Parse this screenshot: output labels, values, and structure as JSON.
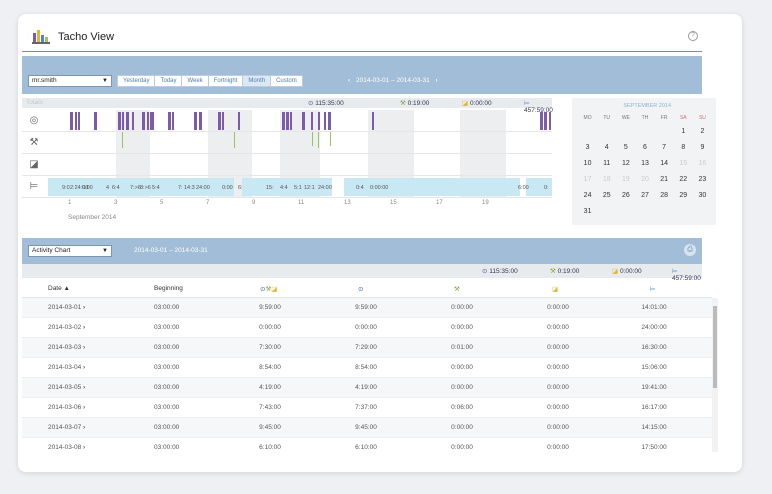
{
  "app": {
    "title": "Tacho View"
  },
  "top": {
    "driver": "mr.smith",
    "tabs": [
      "Yesterday",
      "Today",
      "Week",
      "Fortnight",
      "Month",
      "Custom"
    ],
    "active_tab": "Month",
    "range_from": "2014-03-01",
    "range_sep": "–",
    "range_to": "2014-03-31",
    "summary_left": "Totals",
    "totals": {
      "drive": "115:35:00",
      "work": "0:19:00",
      "available": "0:00:00",
      "rest": "457:59:00"
    },
    "day_numbers": [
      "1",
      "3",
      "5",
      "7",
      "9",
      "11",
      "13",
      "15",
      "17",
      "19"
    ],
    "month_label": "September 2014",
    "rest_labels": [
      "9:0",
      "2:24:00",
      "0:00",
      "4",
      "6:4",
      "7:>6",
      "8:>6",
      "5:4",
      "7:",
      "14:3",
      "24:00",
      "0:00",
      "6:",
      "15:",
      "4:4",
      "5:1",
      "12:1",
      "24:00",
      "0:4",
      "0:00:00",
      "6:00",
      "0:"
    ]
  },
  "calendar": {
    "title": "SEPTEMBER 2014",
    "dow": [
      "MO",
      "TU",
      "WE",
      "TH",
      "FR",
      "SA",
      "SU"
    ],
    "weeks": [
      [
        "",
        "",
        "",
        "",
        "",
        "1",
        "2"
      ],
      [
        "3",
        "4",
        "5",
        "6",
        "7",
        "8",
        "9"
      ],
      [
        "10",
        "11",
        "12",
        "13",
        "14",
        "15",
        "16"
      ],
      [
        "17",
        "18",
        "19",
        "20",
        "21",
        "22",
        "23"
      ],
      [
        "24",
        "25",
        "26",
        "27",
        "28",
        "29",
        "30"
      ],
      [
        "31",
        "",
        "",
        "",
        "",
        "",
        ""
      ]
    ],
    "dim_days": [
      "15",
      "16",
      "17",
      "18",
      "19",
      "20"
    ]
  },
  "activity": {
    "chart_select": "Activity Chart",
    "range_from": "2014-03-01",
    "range_sep": "–",
    "range_to": "2014-03-31",
    "totals": {
      "drive": "115:35:00",
      "work": "0:19:00",
      "available": "0:00:00",
      "rest": "457:59:00"
    },
    "columns": {
      "date": "Date",
      "beginning": "Beginning"
    },
    "rows": [
      {
        "date": "2014-03-01",
        "beginning": "03:00:00",
        "total": "9:59:00",
        "drive": "9:59:00",
        "work": "0:00:00",
        "available": "0:00:00",
        "rest": "14:01:00"
      },
      {
        "date": "2014-03-02",
        "beginning": "03:00:00",
        "total": "0:00:00",
        "drive": "0:00:00",
        "work": "0:00:00",
        "available": "0:00:00",
        "rest": "24:00:00"
      },
      {
        "date": "2014-03-03",
        "beginning": "03:00:00",
        "total": "7:30:00",
        "drive": "7:29:00",
        "work": "0:01:00",
        "available": "0:00:00",
        "rest": "16:30:00"
      },
      {
        "date": "2014-03-04",
        "beginning": "03:00:00",
        "total": "8:54:00",
        "drive": "8:54:00",
        "work": "0:00:00",
        "available": "0:00:00",
        "rest": "15:06:00"
      },
      {
        "date": "2014-03-05",
        "beginning": "03:00:00",
        "total": "4:19:00",
        "drive": "4:19:00",
        "work": "0:00:00",
        "available": "0:00:00",
        "rest": "19:41:00"
      },
      {
        "date": "2014-03-06",
        "beginning": "03:00:00",
        "total": "7:43:00",
        "drive": "7:37:00",
        "work": "0:06:00",
        "available": "0:00:00",
        "rest": "16:17:00"
      },
      {
        "date": "2014-03-07",
        "beginning": "03:00:00",
        "total": "9:45:00",
        "drive": "9:45:00",
        "work": "0:00:00",
        "available": "0:00:00",
        "rest": "14:15:00"
      },
      {
        "date": "2014-03-08",
        "beginning": "03:00:00",
        "total": "6:10:00",
        "drive": "6:10:00",
        "work": "0:00:00",
        "available": "0:00:00",
        "rest": "17:50:00"
      }
    ]
  },
  "icons": {
    "drive": "steering-wheel-icon",
    "work": "tools-icon",
    "available": "available-square-icon",
    "rest": "bed-icon",
    "help": "question-icon",
    "print": "printer-icon",
    "sort": "sort-asc-icon"
  },
  "colors": {
    "header_bar": "#a2bdd7",
    "drive": "#7b5bab",
    "work": "#9fc25a",
    "rest": "#c8e8f4",
    "accent": "#5b93c7"
  }
}
